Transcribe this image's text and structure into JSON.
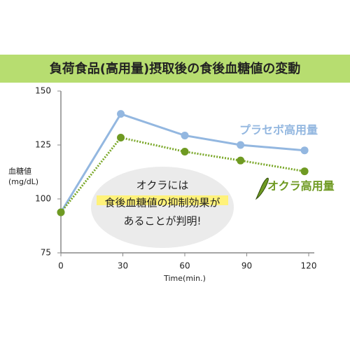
{
  "chart_data": {
    "type": "line",
    "title": "負荷食品(高用量)摂取後の食後血糖値の変動",
    "xlabel": "Time(min.)",
    "ylabel": [
      "血糖値",
      "(mg/dL)"
    ],
    "x": [
      0,
      29,
      60,
      87,
      118
    ],
    "series": [
      {
        "name": "プラセボ高用量",
        "color": "#93b7e0",
        "values": [
          93.8,
          139.4,
          129.4,
          125,
          122.5
        ]
      },
      {
        "name": "オクラ高用量",
        "color": "#6f9a22",
        "values": [
          93.8,
          128.4,
          121.9,
          117.8,
          112.8
        ]
      }
    ],
    "xlim": [
      0,
      120
    ],
    "xticks": [
      0,
      30,
      60,
      90,
      120
    ],
    "ylim": [
      75,
      150
    ],
    "yticks": [
      75,
      100,
      125,
      150
    ],
    "annotations": [
      "オクラには",
      "食後血糖値の抑制効果が",
      "あることが判明!"
    ]
  }
}
